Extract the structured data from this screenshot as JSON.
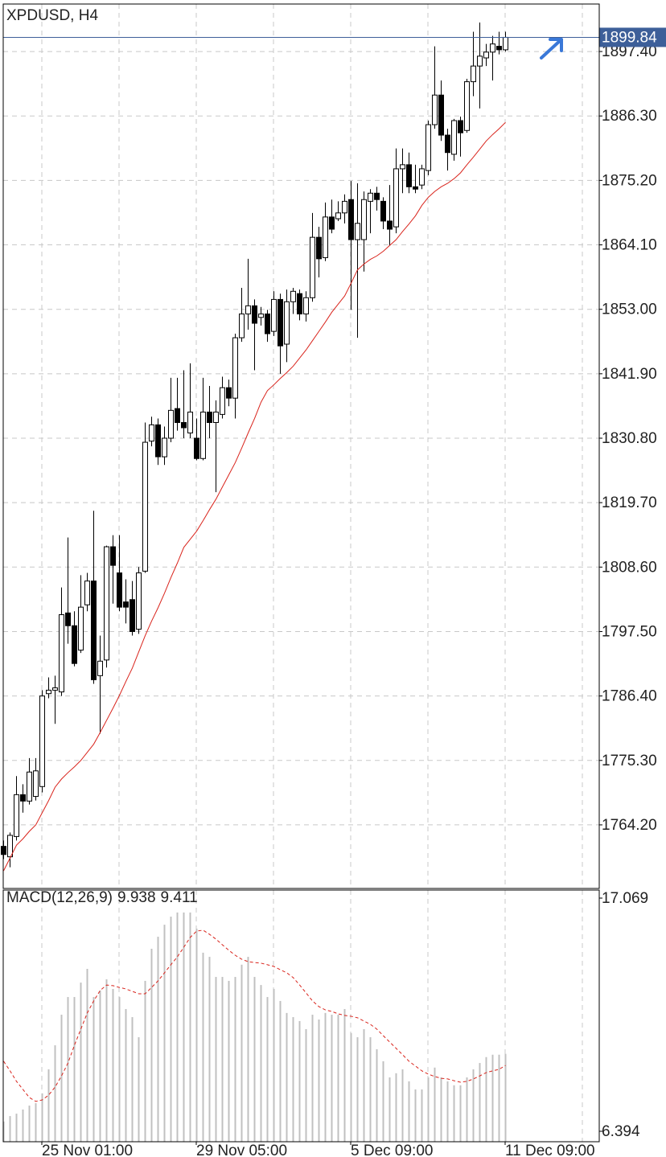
{
  "chart_data": [
    {
      "type": "candlestick",
      "title": "XPDUSD, H4",
      "categories": [
        null,
        null,
        null,
        null,
        null,
        null,
        "25 Nov 01:00",
        null,
        null,
        null,
        null,
        null,
        null,
        null,
        null,
        null,
        null,
        null,
        null,
        null,
        null,
        null,
        null,
        null,
        null,
        null,
        null,
        null,
        null,
        null,
        "29 Nov 05:00",
        null,
        null,
        null,
        null,
        null,
        null,
        null,
        null,
        null,
        null,
        null,
        null,
        null,
        null,
        null,
        null,
        null,
        null,
        null,
        null,
        null,
        null,
        null,
        "5 Dec 09:00",
        null,
        null,
        null,
        null,
        null,
        null,
        null,
        null,
        null,
        null,
        null,
        null,
        null,
        null,
        null,
        null,
        null,
        null,
        null,
        null,
        null,
        null,
        null,
        "11 Dec 09:00"
      ],
      "open": [
        1760.5,
        1758.7,
        1762.2,
        1769.4,
        1768.3,
        1769.1,
        1770.8,
        1786.8,
        1787.4,
        1787.1,
        1800.7,
        1798.5,
        1794.3,
        1802.1,
        1806.2,
        1789.9,
        1792.6,
        1812.1,
        1807.6,
        1802.6,
        1803.0,
        1797.9,
        1807.9,
        1830.3,
        1833.1,
        1827.6,
        1830.8,
        1835.9,
        1833.5,
        1831.7,
        1830.8,
        1827.3,
        1835.3,
        1833.5,
        1834.9,
        1839.5,
        1837.7,
        1848.1,
        1852.2,
        1853.6,
        1851.6,
        1852.2,
        1849.2,
        1854.7,
        1847.0,
        1854.3,
        1855.7,
        1852.2,
        1855.0,
        1865.4,
        1861.9,
        1868.9,
        1868.6,
        1869.6,
        1871.9,
        1865.0,
        1865.0,
        1871.6,
        1873.0,
        1871.6,
        1868.2,
        1867.2,
        1877.2,
        1877.9,
        1874.1,
        1874.4,
        1876.9,
        1884.8,
        1889.9,
        1883.0,
        1879.7,
        1885.5,
        1883.8,
        1892.2,
        1894.9,
        1896.3,
        1897.3,
        1898.3,
        1897.7
      ],
      "high": [
        1761.5,
        1762.9,
        1772.6,
        1771.2,
        1775.7,
        1775.7,
        1787.4,
        1789.6,
        1789.9,
        1805.1,
        1813.7,
        1801.0,
        1807.2,
        1807.6,
        1818.3,
        1796.8,
        1812.3,
        1814.1,
        1814.1,
        1806.5,
        1806.2,
        1808.6,
        1833.5,
        1834.5,
        1834.2,
        1832.8,
        1841.2,
        1841.2,
        1842.5,
        1843.7,
        1834.2,
        1841.2,
        1839.8,
        1837.3,
        1841.4,
        1840.9,
        1848.8,
        1856.7,
        1861.7,
        1854.7,
        1853.4,
        1852.9,
        1856.1,
        1855.7,
        1856.4,
        1856.7,
        1856.4,
        1856.1,
        1869.6,
        1867.2,
        1871.4,
        1871.9,
        1871.6,
        1872.8,
        1875.1,
        1874.7,
        1873.3,
        1873.7,
        1874.1,
        1872.3,
        1874.4,
        1880.7,
        1880.7,
        1880.0,
        1877.9,
        1877.9,
        1885.5,
        1898.3,
        1892.4,
        1884.1,
        1885.8,
        1886.2,
        1892.7,
        1900.8,
        1902.4,
        1898.7,
        1900.1,
        1900.8,
        1900.8
      ],
      "low": [
        1758.3,
        1756.9,
        1761.5,
        1766.3,
        1767.7,
        1768.4,
        1769.8,
        1786.0,
        1781.6,
        1786.4,
        1795.4,
        1791.5,
        1793.8,
        1801.0,
        1788.5,
        1779.9,
        1791.3,
        1802.3,
        1801.0,
        1798.9,
        1796.8,
        1797.1,
        1807.6,
        1829.4,
        1826.2,
        1826.2,
        1830.1,
        1832.1,
        1830.8,
        1830.8,
        1827.0,
        1827.0,
        1830.8,
        1821.5,
        1834.2,
        1836.3,
        1834.2,
        1847.4,
        1849.5,
        1842.5,
        1850.2,
        1847.4,
        1848.4,
        1841.9,
        1843.9,
        1852.2,
        1851.1,
        1850.9,
        1854.3,
        1858.5,
        1861.3,
        1866.1,
        1868.2,
        1867.8,
        1852.9,
        1848.1,
        1859.5,
        1866.1,
        1870.0,
        1866.8,
        1864.0,
        1866.1,
        1873.0,
        1873.0,
        1873.0,
        1873.7,
        1876.1,
        1884.1,
        1882.0,
        1876.9,
        1878.6,
        1879.3,
        1883.4,
        1889.7,
        1887.6,
        1894.9,
        1892.4,
        1896.9,
        1897.4
      ],
      "close": [
        1759.1,
        1762.4,
        1769.4,
        1768.3,
        1773.3,
        1773.5,
        1786.4,
        1787.4,
        1787.8,
        1800.4,
        1798.5,
        1792.0,
        1801.7,
        1806.2,
        1789.2,
        1792.4,
        1812.1,
        1808.9,
        1801.7,
        1801.7,
        1797.5,
        1807.6,
        1830.1,
        1833.1,
        1827.6,
        1830.8,
        1835.6,
        1833.5,
        1832.6,
        1835.3,
        1827.3,
        1835.3,
        1833.5,
        1835.3,
        1839.5,
        1837.7,
        1848.1,
        1852.2,
        1853.6,
        1850.6,
        1852.2,
        1848.8,
        1854.7,
        1846.7,
        1854.3,
        1856.1,
        1852.2,
        1855.0,
        1865.4,
        1861.7,
        1868.9,
        1866.8,
        1869.6,
        1871.6,
        1865.0,
        1867.8,
        1871.9,
        1873.0,
        1871.9,
        1868.2,
        1866.8,
        1877.2,
        1877.9,
        1874.1,
        1873.7,
        1877.2,
        1884.8,
        1889.9,
        1883.0,
        1880.0,
        1885.5,
        1883.4,
        1892.2,
        1894.9,
        1896.6,
        1897.3,
        1898.7,
        1897.7,
        1899.84
      ],
      "bull_color": "#ffffff",
      "bear_color": "#000000",
      "overlay": {
        "color": "#d9241c",
        "values": [
          1756.3,
          1758.5,
          1760.7,
          1761.8,
          1763.1,
          1764.2,
          1766.3,
          1768.4,
          1770.7,
          1772.1,
          1773.2,
          1774.2,
          1775.3,
          1776.7,
          1778.1,
          1780.1,
          1782.2,
          1784.3,
          1786.5,
          1788.9,
          1791.2,
          1794.0,
          1796.8,
          1799.3,
          1801.6,
          1804.1,
          1806.8,
          1809.3,
          1812.0,
          1813.4,
          1814.8,
          1816.6,
          1818.5,
          1820.3,
          1822.4,
          1824.5,
          1826.6,
          1829.1,
          1831.7,
          1834.2,
          1837.0,
          1839.0,
          1840.0,
          1841.1,
          1842.1,
          1843.2,
          1844.6,
          1846.0,
          1847.6,
          1849.2,
          1850.8,
          1852.5,
          1853.9,
          1855.3,
          1857.5,
          1859.8,
          1860.8,
          1861.6,
          1862.2,
          1863.0,
          1864.0,
          1865.0,
          1866.4,
          1867.7,
          1869.1,
          1870.9,
          1872.3,
          1873.3,
          1874.1,
          1874.7,
          1875.5,
          1876.5,
          1877.9,
          1879.2,
          1880.6,
          1882.0,
          1883.1,
          1884.1,
          1885.2
        ]
      },
      "current_price": 1899.84,
      "current_price_color": "#3d5f99",
      "ylim": [
        1753.25,
        1905.58
      ],
      "yticks": [
        {
          "value": 1764.2,
          "label": "1764.20"
        },
        {
          "value": 1775.3,
          "label": "1775.30"
        },
        {
          "value": 1786.4,
          "label": "1786.40"
        },
        {
          "value": 1797.5,
          "label": "1797.50"
        },
        {
          "value": 1808.6,
          "label": "1808.60"
        },
        {
          "value": 1819.7,
          "label": "1819.70"
        },
        {
          "value": 1830.8,
          "label": "1830.80"
        },
        {
          "value": 1841.9,
          "label": "1841.90"
        },
        {
          "value": 1853.0,
          "label": "1853.00"
        },
        {
          "value": 1864.1,
          "label": "1864.10"
        },
        {
          "value": 1875.2,
          "label": "1875.20"
        },
        {
          "value": 1886.3,
          "label": "1886.30"
        },
        {
          "value": 1897.4,
          "label": "1897.40"
        }
      ],
      "grid": true
    },
    {
      "type": "macd",
      "title": "MACD(12,26,9)",
      "histogram": {
        "color": "#c0c0c0",
        "values": [
          6.84,
          7.09,
          7.2,
          7.39,
          7.57,
          7.68,
          8.13,
          9.23,
          10.33,
          11.73,
          12.54,
          12.54,
          13.2,
          13.83,
          12.54,
          12.84,
          13.35,
          12.91,
          12.54,
          11.99,
          11.62,
          10.7,
          13.28,
          14.75,
          15.3,
          15.85,
          16.22,
          16.41,
          16.41,
          16.41,
          15.67,
          14.57,
          14.38,
          13.46,
          13.46,
          13.28,
          13.46,
          14.02,
          14.38,
          13.46,
          13.09,
          12.54,
          12.91,
          12.36,
          11.81,
          11.62,
          11.44,
          11.07,
          11.73,
          11.51,
          11.81,
          11.73,
          11.73,
          11.99,
          10.89,
          10.7,
          11.07,
          10.7,
          10.15,
          9.6,
          8.86,
          9.05,
          9.23,
          8.68,
          8.31,
          8.31,
          8.86,
          9.31,
          8.86,
          8.68,
          8.5,
          8.5,
          8.86,
          9.23,
          9.52,
          9.79,
          9.9,
          9.9,
          9.938
        ]
      },
      "signal": {
        "color": "#d9241c",
        "values": [
          9.6,
          9.16,
          8.68,
          8.31,
          7.94,
          7.76,
          7.83,
          8.05,
          8.42,
          8.93,
          9.52,
          10.33,
          11.07,
          11.81,
          12.36,
          12.84,
          13.09,
          13.06,
          12.98,
          12.91,
          12.8,
          12.69,
          12.69,
          12.98,
          13.28,
          13.65,
          14.02,
          14.38,
          14.82,
          15.27,
          15.56,
          15.6,
          15.41,
          15.19,
          14.93,
          14.68,
          14.45,
          14.27,
          14.16,
          14.12,
          14.09,
          14.02,
          13.94,
          13.79,
          13.65,
          13.43,
          13.09,
          12.73,
          12.36,
          12.1,
          11.95,
          11.88,
          11.77,
          11.7,
          11.66,
          11.59,
          11.44,
          11.29,
          11.07,
          10.77,
          10.48,
          10.19,
          9.9,
          9.6,
          9.38,
          9.16,
          9.01,
          8.9,
          8.82,
          8.79,
          8.71,
          8.64,
          8.68,
          8.79,
          8.93,
          9.08,
          9.16,
          9.23,
          9.411
        ]
      },
      "ylim": [
        5.916,
        17.437
      ],
      "yticks": [
        6.394,
        17.069
      ]
    }
  ]
}
